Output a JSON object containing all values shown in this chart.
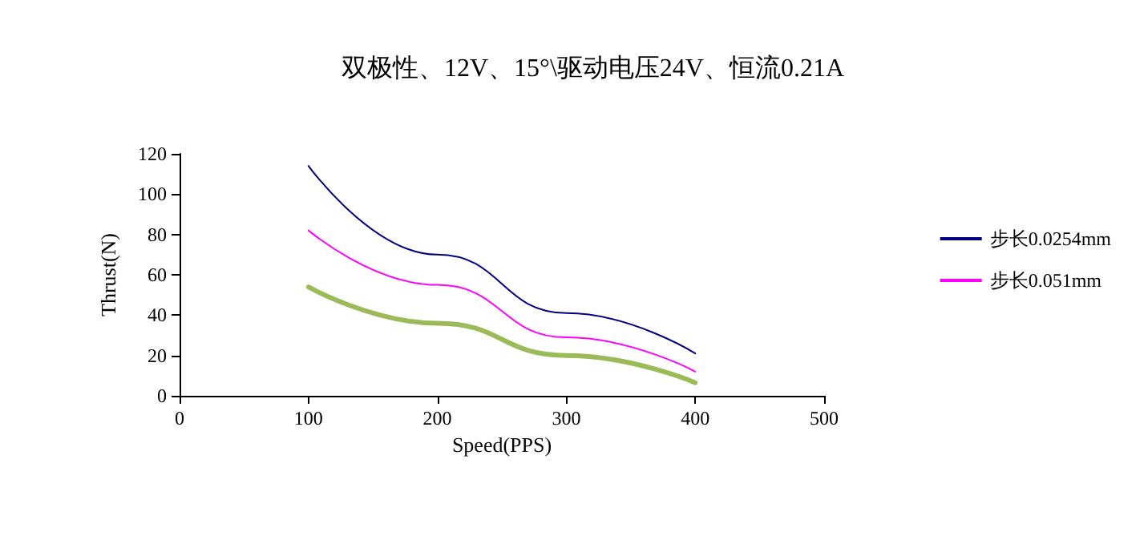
{
  "chart_data": {
    "type": "line",
    "title": "双极性、12V、15°\\驱动电压24V、恒流0.21A",
    "xlabel": "Speed(PPS)",
    "ylabel": "Thrust(N)",
    "x": [
      100,
      200,
      300,
      400
    ],
    "series": [
      {
        "name": "步长0.0254mm",
        "color": "#000080",
        "values": [
          114,
          70,
          41,
          21
        ]
      },
      {
        "name": "步长0.051mm",
        "color": "#ff00ff",
        "values": [
          82,
          55,
          29,
          12
        ]
      },
      {
        "color": "#9bbb59",
        "values": [
          54,
          36,
          20,
          6.5
        ]
      }
    ],
    "xlim": [
      0,
      500
    ],
    "xticks": [
      0,
      100,
      200,
      300,
      400,
      500
    ],
    "ylim": [
      0,
      120
    ],
    "yticks": [
      0,
      20,
      40,
      60,
      80,
      100,
      120
    ],
    "grid": false,
    "legend": "right",
    "marker": "none",
    "line_style": "solid"
  }
}
